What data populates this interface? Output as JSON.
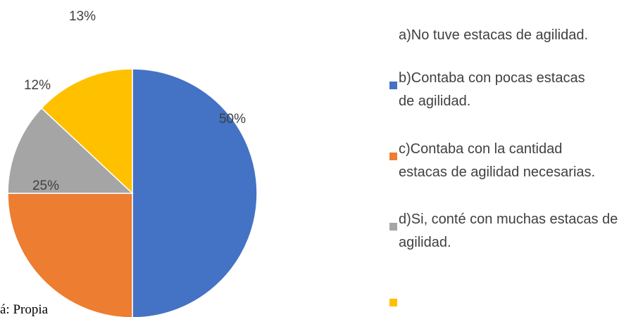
{
  "chart_data": {
    "type": "pie",
    "categories": [
      "a)No tuve estacas de agilidad.",
      "b)Contaba con pocas estacas de agilidad.",
      "c)Contaba con la cantidad estacas de agilidad necesarias.",
      "d)Si, conté con muchas estacas de agilidad.",
      null
    ],
    "values": [
      0,
      50,
      25,
      12,
      13
    ],
    "value_labels": [
      null,
      "50%",
      "25%",
      "12%",
      "13%"
    ],
    "colors": [
      "#ffffff",
      "#4472c4",
      "#ed7d31",
      "#a5a5a5",
      "#ffc000"
    ],
    "source": "á: Propia",
    "legend": "right"
  }
}
